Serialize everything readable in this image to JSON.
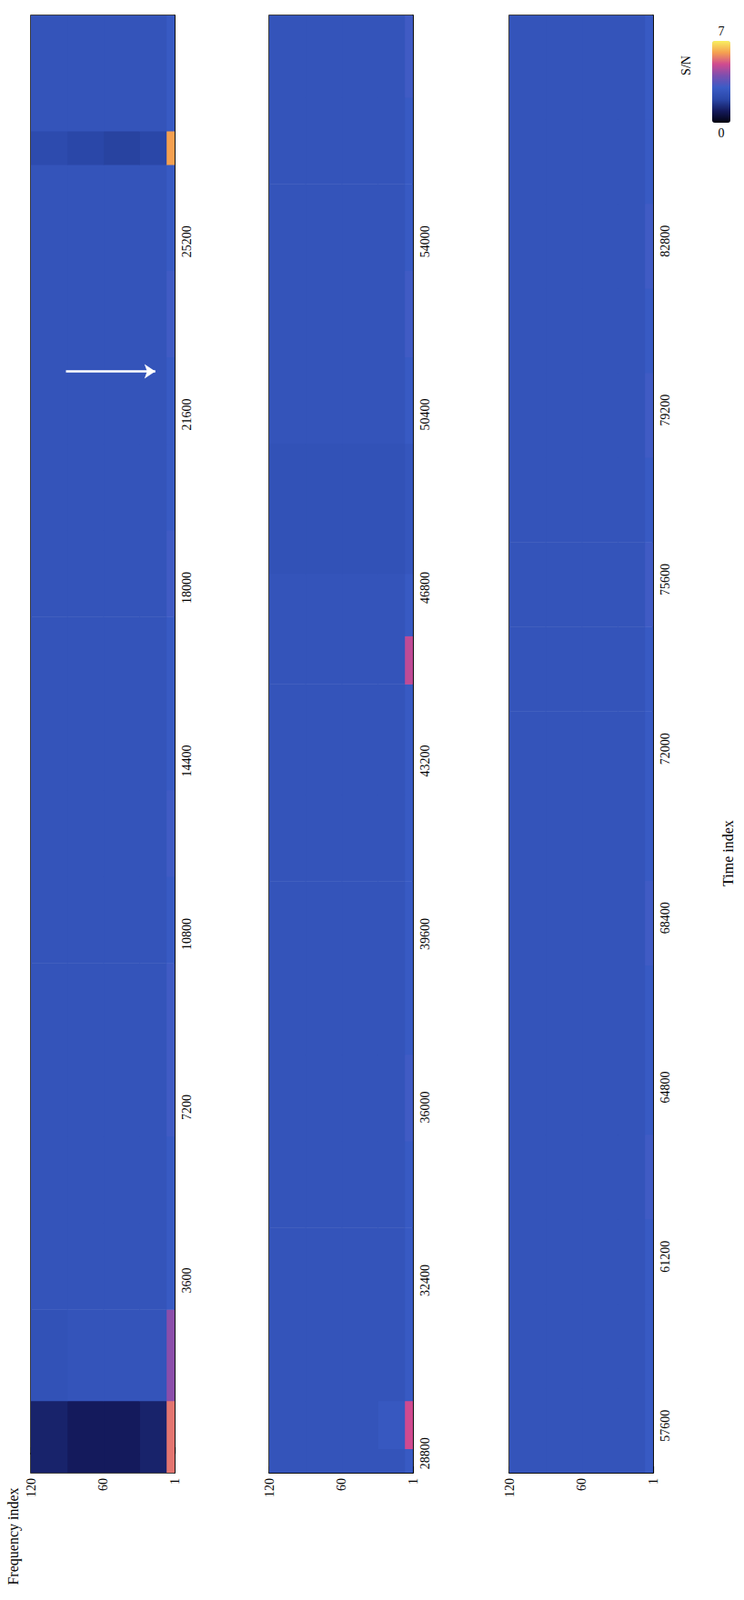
{
  "chart_data": [
    {
      "type": "heatmap",
      "ylabel": "Frequency index",
      "xlim": [
        -400,
        29900
      ],
      "xticks": [
        3600,
        7200,
        10800,
        14400,
        18000,
        21600,
        25200
      ],
      "ylim": [
        1,
        120
      ],
      "yticks": [
        1,
        60,
        120
      ],
      "time_edges": [
        -400,
        1100,
        3000,
        4800,
        6600,
        8400,
        10200,
        12000,
        13800,
        15600,
        17400,
        19200,
        21000,
        22800,
        24600,
        26800,
        27500,
        29900
      ],
      "frequency_edges": [
        1,
        8,
        30,
        60,
        90,
        120
      ],
      "snr": [
        [
          5.5,
          1.2,
          1.0,
          1.0,
          1.2
        ],
        [
          4.2,
          2.6,
          2.6,
          2.6,
          2.5
        ],
        [
          2.9,
          2.6,
          2.6,
          2.6,
          2.6
        ],
        [
          2.9,
          2.6,
          2.6,
          2.6,
          2.6
        ],
        [
          3.1,
          2.6,
          2.6,
          2.6,
          2.6
        ],
        [
          3.1,
          2.6,
          2.6,
          2.6,
          2.6
        ],
        [
          2.9,
          2.6,
          2.6,
          2.6,
          2.6
        ],
        [
          3.1,
          2.6,
          2.6,
          2.6,
          2.6
        ],
        [
          2.9,
          2.6,
          2.6,
          2.6,
          2.6
        ],
        [
          2.9,
          2.6,
          2.6,
          2.6,
          2.6
        ],
        [
          3.1,
          2.6,
          2.6,
          2.6,
          2.6
        ],
        [
          2.9,
          2.6,
          2.6,
          2.6,
          2.6
        ],
        [
          2.9,
          2.6,
          2.6,
          2.6,
          2.6
        ],
        [
          3.1,
          2.6,
          2.6,
          2.6,
          2.6
        ],
        [
          2.9,
          2.6,
          2.6,
          2.6,
          2.6
        ],
        [
          6.0,
          2.0,
          1.9,
          2.0,
          2.2
        ],
        [
          2.9,
          2.6,
          2.6,
          2.6,
          2.6
        ]
      ],
      "arrow": {
        "time": 22500,
        "frequency": [
          91,
          17
        ]
      }
    },
    {
      "type": "heatmap",
      "xlim": [
        28400,
        58700
      ],
      "xticks": [
        28800,
        32400,
        36000,
        39600,
        43200,
        46800,
        50400,
        54000
      ],
      "ylim": [
        1,
        120
      ],
      "yticks": [
        1,
        60,
        120
      ],
      "time_edges": [
        28400,
        28900,
        29900,
        31700,
        33500,
        35300,
        37100,
        38900,
        40700,
        42500,
        44800,
        45800,
        47100,
        49800,
        51600,
        53400,
        55200,
        57000,
        58700
      ],
      "frequency_edges": [
        1,
        8,
        30,
        60,
        90,
        120
      ],
      "snr": [
        [
          2.9,
          2.6,
          2.6,
          2.6,
          2.6
        ],
        [
          5.0,
          2.8,
          2.6,
          2.6,
          2.6
        ],
        [
          2.9,
          2.6,
          2.6,
          2.6,
          2.6
        ],
        [
          2.9,
          2.6,
          2.6,
          2.6,
          2.6
        ],
        [
          2.9,
          2.6,
          2.6,
          2.6,
          2.6
        ],
        [
          3.1,
          2.6,
          2.6,
          2.6,
          2.6
        ],
        [
          2.9,
          2.6,
          2.6,
          2.6,
          2.6
        ],
        [
          2.9,
          2.6,
          2.6,
          2.6,
          2.6
        ],
        [
          2.9,
          2.6,
          2.6,
          2.6,
          2.6
        ],
        [
          2.9,
          2.6,
          2.6,
          2.6,
          2.6
        ],
        [
          4.8,
          2.6,
          2.6,
          2.6,
          2.6
        ],
        [
          2.9,
          2.6,
          2.6,
          2.6,
          2.6
        ],
        [
          2.7,
          2.5,
          2.5,
          2.5,
          2.5
        ],
        [
          2.9,
          2.6,
          2.6,
          2.6,
          2.6
        ],
        [
          3.1,
          2.6,
          2.6,
          2.6,
          2.6
        ],
        [
          2.9,
          2.6,
          2.6,
          2.6,
          2.6
        ],
        [
          2.9,
          2.6,
          2.6,
          2.6,
          2.6
        ],
        [
          3.1,
          2.6,
          2.6,
          2.6,
          2.6
        ]
      ]
    },
    {
      "type": "heatmap",
      "xlabel": "Time index",
      "xlim": [
        56600,
        87600
      ],
      "xticks": [
        57600,
        61200,
        64800,
        68400,
        72000,
        75600,
        79200,
        82800
      ],
      "ylim": [
        1,
        120
      ],
      "yticks": [
        1,
        60,
        120
      ],
      "time_edges": [
        56600,
        58400,
        60200,
        62000,
        63800,
        65600,
        67400,
        69200,
        71000,
        72800,
        74600,
        76400,
        78200,
        80000,
        81800,
        83600,
        85400,
        87600
      ],
      "frequency_edges": [
        1,
        8,
        30,
        60,
        90,
        120
      ],
      "snr": [
        [
          2.9,
          2.6,
          2.6,
          2.6,
          2.6
        ],
        [
          2.9,
          2.6,
          2.6,
          2.6,
          2.6
        ],
        [
          2.9,
          2.6,
          2.6,
          2.6,
          2.6
        ],
        [
          3.1,
          2.6,
          2.6,
          2.6,
          2.6
        ],
        [
          2.9,
          2.6,
          2.6,
          2.6,
          2.6
        ],
        [
          2.9,
          2.6,
          2.6,
          2.6,
          2.6
        ],
        [
          3.1,
          2.6,
          2.6,
          2.6,
          2.6
        ],
        [
          2.9,
          2.6,
          2.6,
          2.6,
          2.6
        ],
        [
          2.9,
          2.6,
          2.6,
          2.6,
          2.6
        ],
        [
          2.9,
          2.6,
          2.6,
          2.6,
          2.6
        ],
        [
          3.1,
          2.6,
          2.6,
          2.6,
          2.6
        ],
        [
          2.9,
          2.6,
          2.6,
          2.6,
          2.6
        ],
        [
          3.1,
          2.6,
          2.6,
          2.6,
          2.6
        ],
        [
          2.9,
          2.6,
          2.6,
          2.6,
          2.6
        ],
        [
          3.1,
          2.6,
          2.6,
          2.6,
          2.6
        ],
        [
          2.9,
          2.6,
          2.6,
          2.6,
          2.6
        ],
        [
          2.9,
          2.6,
          2.6,
          2.6,
          2.6
        ]
      ],
      "colorbar": {
        "label": "S/N",
        "range": [
          0,
          7
        ],
        "ticks": [
          0,
          7
        ]
      }
    }
  ]
}
